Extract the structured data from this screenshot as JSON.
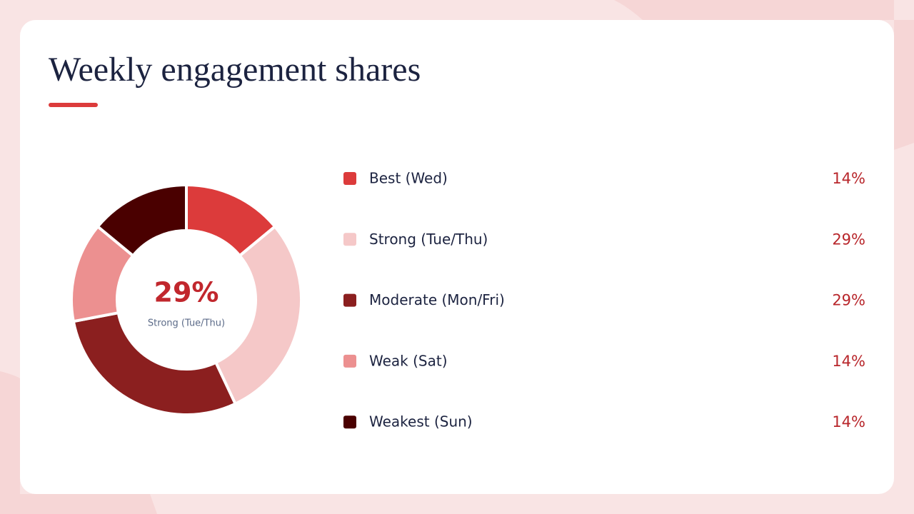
{
  "chart_data": {
    "type": "pie",
    "title": "Weekly engagement shares",
    "categories": [
      "Best (Wed)",
      "Strong (Tue/Thu)",
      "Moderate (Mon/Fri)",
      "Weak (Sat)",
      "Weakest (Sun)"
    ],
    "values": [
      14,
      29,
      29,
      14,
      14
    ],
    "value_labels": [
      "14%",
      "29%",
      "29%",
      "14%",
      "14%"
    ],
    "colors": [
      "#dc3b3b",
      "#f5c8c8",
      "#8b1f1f",
      "#ec9090",
      "#4a0000"
    ]
  }
}
